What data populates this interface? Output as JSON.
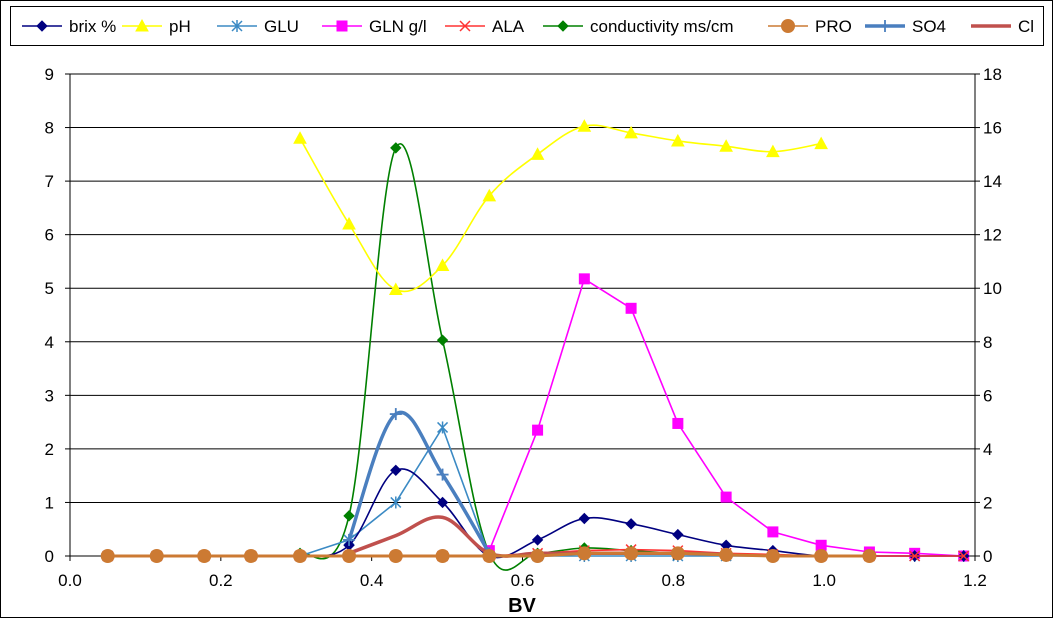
{
  "chart_data": {
    "type": "line",
    "xlabel": "BV",
    "xlim": [
      0.0,
      1.2
    ],
    "x_ticks": [
      "0.0",
      "0.2",
      "0.4",
      "0.6",
      "0.8",
      "1.0",
      "1.2"
    ],
    "ylim_left": [
      0,
      9
    ],
    "y_ticks_left": [
      "0",
      "1",
      "2",
      "3",
      "4",
      "5",
      "6",
      "7",
      "8",
      "9"
    ],
    "ylim_right": [
      0,
      18
    ],
    "y_ticks_right": [
      "0",
      "2",
      "4",
      "6",
      "8",
      "10",
      "12",
      "14",
      "16",
      "18"
    ],
    "grid": "horizontal",
    "legend_position": "top",
    "series": [
      {
        "name": "brix %",
        "color": "#000080",
        "marker": "diamond",
        "axis": "left",
        "smooth": true,
        "points": [
          [
            0.05,
            0
          ],
          [
            0.115,
            0
          ],
          [
            0.178,
            0
          ],
          [
            0.24,
            0
          ],
          [
            0.305,
            0
          ],
          [
            0.37,
            0.2
          ],
          [
            0.432,
            1.6
          ],
          [
            0.494,
            1.0
          ],
          [
            0.556,
            0
          ],
          [
            0.62,
            0.3
          ],
          [
            0.682,
            0.7
          ],
          [
            0.744,
            0.6
          ],
          [
            0.806,
            0.4
          ],
          [
            0.87,
            0.2
          ],
          [
            0.932,
            0.1
          ],
          [
            0.996,
            0
          ],
          [
            1.06,
            0
          ],
          [
            1.12,
            0
          ],
          [
            1.185,
            0
          ]
        ]
      },
      {
        "name": "pH",
        "color": "#ffff00",
        "marker": "triangle",
        "axis": "right",
        "smooth": true,
        "points": [
          [
            0.305,
            15.6
          ],
          [
            0.37,
            12.4
          ],
          [
            0.432,
            9.95
          ],
          [
            0.494,
            10.85
          ],
          [
            0.556,
            13.45
          ],
          [
            0.62,
            15.0
          ],
          [
            0.682,
            16.05
          ],
          [
            0.744,
            15.8
          ],
          [
            0.806,
            15.5
          ],
          [
            0.87,
            15.3
          ],
          [
            0.932,
            15.1
          ],
          [
            0.996,
            15.4
          ]
        ]
      },
      {
        "name": "GLU",
        "color": "#3b8ac4",
        "marker": "star",
        "axis": "left",
        "smooth": false,
        "points": [
          [
            0.05,
            0
          ],
          [
            0.115,
            0
          ],
          [
            0.178,
            0
          ],
          [
            0.24,
            0
          ],
          [
            0.305,
            0
          ],
          [
            0.37,
            0.3
          ],
          [
            0.432,
            1.0
          ],
          [
            0.494,
            2.4
          ],
          [
            0.556,
            0
          ],
          [
            0.62,
            0
          ],
          [
            0.682,
            0
          ],
          [
            0.744,
            0
          ],
          [
            0.806,
            0
          ],
          [
            0.87,
            0
          ],
          [
            0.932,
            0
          ],
          [
            0.996,
            0
          ],
          [
            1.06,
            0
          ],
          [
            1.12,
            0
          ],
          [
            1.185,
            0
          ]
        ]
      },
      {
        "name": "GLN g/l",
        "color": "#ff00ff",
        "marker": "square",
        "axis": "right",
        "smooth": false,
        "points": [
          [
            0.556,
            0.2
          ],
          [
            0.62,
            4.7
          ],
          [
            0.682,
            10.35
          ],
          [
            0.744,
            9.25
          ],
          [
            0.806,
            4.95
          ],
          [
            0.87,
            2.2
          ],
          [
            0.932,
            0.9
          ],
          [
            0.996,
            0.4
          ],
          [
            1.06,
            0.15
          ],
          [
            1.12,
            0.1
          ],
          [
            1.185,
            0
          ]
        ]
      },
      {
        "name": "ALA",
        "color": "#ff3333",
        "marker": "x",
        "axis": "left",
        "smooth": false,
        "points": [
          [
            0.05,
            0
          ],
          [
            0.115,
            0
          ],
          [
            0.178,
            0
          ],
          [
            0.24,
            0
          ],
          [
            0.305,
            0
          ],
          [
            0.37,
            0
          ],
          [
            0.432,
            0
          ],
          [
            0.494,
            0
          ],
          [
            0.556,
            0
          ],
          [
            0.62,
            0.05
          ],
          [
            0.682,
            0.1
          ],
          [
            0.744,
            0.12
          ],
          [
            0.806,
            0.1
          ],
          [
            0.87,
            0.05
          ],
          [
            0.932,
            0.03
          ],
          [
            0.996,
            0
          ],
          [
            1.06,
            0
          ],
          [
            1.12,
            0
          ],
          [
            1.185,
            0
          ]
        ]
      },
      {
        "name": "conductivity ms/cm",
        "color": "#008000",
        "marker": "diamond",
        "axis": "left",
        "smooth": true,
        "points": [
          [
            0.305,
            0.05
          ],
          [
            0.37,
            0.75
          ],
          [
            0.432,
            7.62
          ],
          [
            0.494,
            4.03
          ],
          [
            0.556,
            0.05
          ],
          [
            0.62,
            0.05
          ],
          [
            0.682,
            0.15
          ],
          [
            0.744,
            0.1
          ],
          [
            0.806,
            0.05
          ],
          [
            0.87,
            0.03
          ],
          [
            0.932,
            0.02
          ]
        ]
      },
      {
        "name": "PRO",
        "color": "#cc7a33",
        "marker": "circle",
        "axis": "left",
        "smooth": false,
        "points": [
          [
            0.05,
            0
          ],
          [
            0.115,
            0
          ],
          [
            0.178,
            0
          ],
          [
            0.24,
            0
          ],
          [
            0.305,
            0
          ],
          [
            0.37,
            0
          ],
          [
            0.432,
            0
          ],
          [
            0.494,
            0
          ],
          [
            0.556,
            0
          ],
          [
            0.62,
            0
          ],
          [
            0.682,
            0.05
          ],
          [
            0.744,
            0.05
          ],
          [
            0.806,
            0.05
          ],
          [
            0.87,
            0.02
          ],
          [
            0.932,
            0
          ],
          [
            0.996,
            0
          ],
          [
            1.06,
            0
          ]
        ]
      },
      {
        "name": "SO4",
        "color": "#4a7fbf",
        "marker": "plus",
        "axis": "left",
        "smooth": true,
        "points": [
          [
            0.37,
            0.3
          ],
          [
            0.432,
            2.65
          ],
          [
            0.494,
            1.52
          ],
          [
            0.556,
            0.05
          ]
        ]
      },
      {
        "name": "Cl",
        "color": "#c0504d",
        "marker": "none",
        "axis": "left",
        "smooth": true,
        "points": [
          [
            0.37,
            0.05
          ],
          [
            0.432,
            0.38
          ],
          [
            0.494,
            0.72
          ],
          [
            0.556,
            0.05
          ],
          [
            0.62,
            0.05
          ],
          [
            0.682,
            0.05
          ],
          [
            0.744,
            0.05
          ],
          [
            0.806,
            0.05
          ],
          [
            0.87,
            0.03
          ]
        ]
      }
    ]
  }
}
